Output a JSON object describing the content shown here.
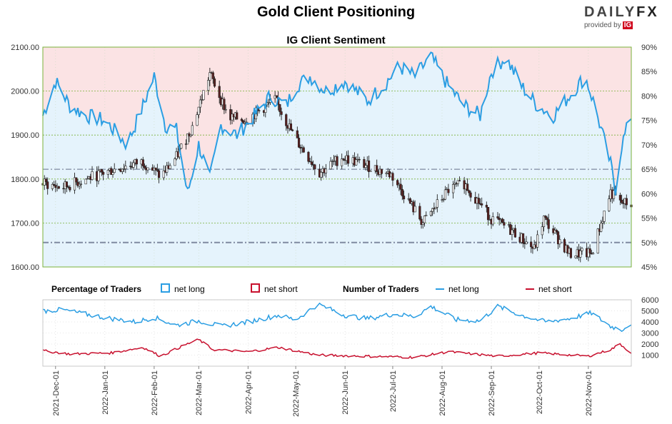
{
  "header": {
    "title": "Gold Client Positioning",
    "subtitle": "IG Client Sentiment",
    "brand": "DAILYFX",
    "brand_a": "DAIL",
    "brand_b": "Y",
    "brand_c": "FX",
    "provided_by": "provided by",
    "ig": "IG"
  },
  "legend": {
    "pct_title": "Percentage of Traders",
    "pct_long": "net long",
    "pct_short": "net short",
    "num_title": "Number of Traders",
    "num_long": "net long",
    "num_short": "net short"
  },
  "colors": {
    "long": "#2b9ee3",
    "short": "#c8102e",
    "long_fill": "#e5f3fc",
    "short_fill": "#fbe3e4",
    "candle_up": "#ffffff",
    "candle_down": "#5a1f1f",
    "dash_line": "#7f8aa0",
    "grid": "#7ab23a"
  },
  "chart_data": [
    {
      "type": "candlestick",
      "title": "IG Client Sentiment",
      "series_name": "Gold",
      "y_left_ticks": [
        "1600.00",
        "1700.00",
        "1800.00",
        "1900.00",
        "2000.00",
        "2100.00"
      ],
      "ylim_left": [
        1600,
        2100
      ],
      "y_right_ticks": [
        "45%",
        "50%",
        "55%",
        "60%",
        "65%",
        "70%",
        "75%",
        "80%",
        "85%",
        "90%"
      ],
      "ylim_right": [
        45,
        90
      ],
      "reference_lines_pct": [
        50,
        65
      ],
      "price_keypoints": [
        {
          "x": "2021-11-23",
          "y": 1790
        },
        {
          "x": "2021-12-05",
          "y": 1780
        },
        {
          "x": "2021-12-20",
          "y": 1800
        },
        {
          "x": "2022-01-05",
          "y": 1820
        },
        {
          "x": "2022-01-25",
          "y": 1840
        },
        {
          "x": "2022-02-05",
          "y": 1805
        },
        {
          "x": "2022-02-15",
          "y": 1850
        },
        {
          "x": "2022-02-25",
          "y": 1920
        },
        {
          "x": "2022-03-08",
          "y": 2040
        },
        {
          "x": "2022-03-20",
          "y": 1940
        },
        {
          "x": "2022-03-31",
          "y": 1935
        },
        {
          "x": "2022-04-18",
          "y": 1980
        },
        {
          "x": "2022-05-01",
          "y": 1890
        },
        {
          "x": "2022-05-16",
          "y": 1815
        },
        {
          "x": "2022-05-30",
          "y": 1850
        },
        {
          "x": "2022-06-15",
          "y": 1830
        },
        {
          "x": "2022-06-30",
          "y": 1810
        },
        {
          "x": "2022-07-20",
          "y": 1700
        },
        {
          "x": "2022-08-05",
          "y": 1775
        },
        {
          "x": "2022-08-15",
          "y": 1790
        },
        {
          "x": "2022-09-01",
          "y": 1710
        },
        {
          "x": "2022-09-15",
          "y": 1680
        },
        {
          "x": "2022-09-28",
          "y": 1640
        },
        {
          "x": "2022-10-04",
          "y": 1710
        },
        {
          "x": "2022-10-20",
          "y": 1630
        },
        {
          "x": "2022-11-03",
          "y": 1630
        },
        {
          "x": "2022-11-15",
          "y": 1770
        },
        {
          "x": "2022-11-21",
          "y": 1745
        },
        {
          "x": "2022-11-28",
          "y": 1745
        }
      ],
      "net_long_pct_keypoints": [
        {
          "x": "2021-11-23",
          "y": 76
        },
        {
          "x": "2021-12-01",
          "y": 83
        },
        {
          "x": "2021-12-10",
          "y": 78
        },
        {
          "x": "2021-12-20",
          "y": 76
        },
        {
          "x": "2022-01-01",
          "y": 75
        },
        {
          "x": "2022-01-15",
          "y": 70
        },
        {
          "x": "2022-01-25",
          "y": 78
        },
        {
          "x": "2022-02-01",
          "y": 84
        },
        {
          "x": "2022-02-08",
          "y": 74
        },
        {
          "x": "2022-02-15",
          "y": 73
        },
        {
          "x": "2022-02-22",
          "y": 60
        },
        {
          "x": "2022-03-01",
          "y": 70
        },
        {
          "x": "2022-03-08",
          "y": 63
        },
        {
          "x": "2022-03-15",
          "y": 74
        },
        {
          "x": "2022-03-25",
          "y": 72
        },
        {
          "x": "2022-04-05",
          "y": 76
        },
        {
          "x": "2022-04-15",
          "y": 80
        },
        {
          "x": "2022-04-25",
          "y": 78
        },
        {
          "x": "2022-05-01",
          "y": 82
        },
        {
          "x": "2022-05-10",
          "y": 84
        },
        {
          "x": "2022-05-20",
          "y": 81
        },
        {
          "x": "2022-06-01",
          "y": 83
        },
        {
          "x": "2022-06-15",
          "y": 79
        },
        {
          "x": "2022-06-25",
          "y": 82
        },
        {
          "x": "2022-07-05",
          "y": 86
        },
        {
          "x": "2022-07-15",
          "y": 84
        },
        {
          "x": "2022-07-25",
          "y": 88
        },
        {
          "x": "2022-08-05",
          "y": 82
        },
        {
          "x": "2022-08-15",
          "y": 78
        },
        {
          "x": "2022-08-25",
          "y": 76
        },
        {
          "x": "2022-09-01",
          "y": 85
        },
        {
          "x": "2022-09-10",
          "y": 88
        },
        {
          "x": "2022-09-20",
          "y": 82
        },
        {
          "x": "2022-09-30",
          "y": 78
        },
        {
          "x": "2022-10-10",
          "y": 76
        },
        {
          "x": "2022-10-20",
          "y": 80
        },
        {
          "x": "2022-10-30",
          "y": 84
        },
        {
          "x": "2022-11-05",
          "y": 78
        },
        {
          "x": "2022-11-10",
          "y": 72
        },
        {
          "x": "2022-11-15",
          "y": 66
        },
        {
          "x": "2022-11-18",
          "y": 61
        },
        {
          "x": "2022-11-22",
          "y": 70
        },
        {
          "x": "2022-11-28",
          "y": 76
        }
      ]
    },
    {
      "type": "line",
      "title": "Number of Traders",
      "series": [
        {
          "name": "net long",
          "values_keypoints": [
            {
              "x": "2021-11-23",
              "y": 5000
            },
            {
              "x": "2021-12-05",
              "y": 5100
            },
            {
              "x": "2021-12-20",
              "y": 4700
            },
            {
              "x": "2022-01-05",
              "y": 4300
            },
            {
              "x": "2022-01-20",
              "y": 4000
            },
            {
              "x": "2022-02-01",
              "y": 4400
            },
            {
              "x": "2022-02-15",
              "y": 3700
            },
            {
              "x": "2022-03-01",
              "y": 4100
            },
            {
              "x": "2022-03-15",
              "y": 3600
            },
            {
              "x": "2022-04-01",
              "y": 4000
            },
            {
              "x": "2022-04-20",
              "y": 4600
            },
            {
              "x": "2022-05-01",
              "y": 4200
            },
            {
              "x": "2022-05-15",
              "y": 5600
            },
            {
              "x": "2022-06-01",
              "y": 4600
            },
            {
              "x": "2022-06-15",
              "y": 4300
            },
            {
              "x": "2022-07-01",
              "y": 4700
            },
            {
              "x": "2022-07-15",
              "y": 4500
            },
            {
              "x": "2022-07-25",
              "y": 5400
            },
            {
              "x": "2022-08-10",
              "y": 4200
            },
            {
              "x": "2022-08-25",
              "y": 4100
            },
            {
              "x": "2022-09-05",
              "y": 5400
            },
            {
              "x": "2022-09-20",
              "y": 4600
            },
            {
              "x": "2022-10-05",
              "y": 4000
            },
            {
              "x": "2022-10-20",
              "y": 4300
            },
            {
              "x": "2022-11-03",
              "y": 4800
            },
            {
              "x": "2022-11-15",
              "y": 3600
            },
            {
              "x": "2022-11-22",
              "y": 3300
            },
            {
              "x": "2022-11-28",
              "y": 3900
            }
          ]
        },
        {
          "name": "net short",
          "values_keypoints": [
            {
              "x": "2021-11-23",
              "y": 1400
            },
            {
              "x": "2021-12-10",
              "y": 1100
            },
            {
              "x": "2022-01-05",
              "y": 1200
            },
            {
              "x": "2022-01-25",
              "y": 1700
            },
            {
              "x": "2022-02-05",
              "y": 900
            },
            {
              "x": "2022-02-20",
              "y": 1900
            },
            {
              "x": "2022-03-01",
              "y": 2400
            },
            {
              "x": "2022-03-10",
              "y": 1500
            },
            {
              "x": "2022-04-01",
              "y": 1300
            },
            {
              "x": "2022-04-20",
              "y": 1700
            },
            {
              "x": "2022-05-15",
              "y": 1000
            },
            {
              "x": "2022-06-15",
              "y": 900
            },
            {
              "x": "2022-07-15",
              "y": 800
            },
            {
              "x": "2022-08-05",
              "y": 1300
            },
            {
              "x": "2022-09-05",
              "y": 900
            },
            {
              "x": "2022-10-01",
              "y": 1200
            },
            {
              "x": "2022-11-01",
              "y": 900
            },
            {
              "x": "2022-11-15",
              "y": 1500
            },
            {
              "x": "2022-11-21",
              "y": 2000
            },
            {
              "x": "2022-11-28",
              "y": 1200
            }
          ]
        }
      ],
      "y_right_ticks": [
        "1000",
        "2000",
        "3000",
        "4000",
        "5000",
        "6000"
      ],
      "ylim_right": [
        0,
        6000
      ]
    }
  ],
  "x_axis": {
    "start": "2021-11-23",
    "end": "2022-11-28",
    "tick_labels": [
      "2021-Dec-01",
      "2022-Jan-01",
      "2022-Feb-01",
      "2022-Mar-01",
      "2022-Apr-01",
      "2022-May-01",
      "2022-Jun-01",
      "2022-Jul-01",
      "2022-Aug-01",
      "2022-Sep-01",
      "2022-Oct-01",
      "2022-Nov-01"
    ],
    "tick_dates": [
      "2021-12-01",
      "2022-01-01",
      "2022-02-01",
      "2022-03-01",
      "2022-04-01",
      "2022-05-01",
      "2022-06-01",
      "2022-07-01",
      "2022-08-01",
      "2022-09-01",
      "2022-10-01",
      "2022-11-01"
    ]
  }
}
